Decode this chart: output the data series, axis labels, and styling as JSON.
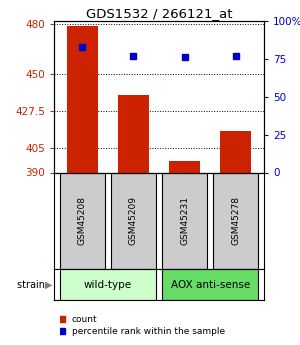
{
  "title": "GDS1532 / 266121_at",
  "samples": [
    "GSM45208",
    "GSM45209",
    "GSM45231",
    "GSM45278"
  ],
  "counts": [
    479,
    437,
    397,
    415
  ],
  "percentiles": [
    83,
    77,
    76,
    77
  ],
  "ylim_left": [
    390,
    482
  ],
  "yticks_left": [
    390,
    405,
    427.5,
    450,
    480
  ],
  "yticks_right": [
    0,
    25,
    50,
    75,
    100
  ],
  "bar_color": "#cc2200",
  "dot_color": "#0000cc",
  "groups": [
    {
      "label": "wild-type",
      "samples": [
        0,
        1
      ],
      "color": "#ccffcc"
    },
    {
      "label": "AOX anti-sense",
      "samples": [
        2,
        3
      ],
      "color": "#66dd66"
    }
  ],
  "strain_label": "strain",
  "legend_count_label": "count",
  "legend_pct_label": "percentile rank within the sample",
  "bar_width": 0.6,
  "sample_box_color": "#cccccc",
  "xlim": [
    -0.55,
    3.55
  ]
}
